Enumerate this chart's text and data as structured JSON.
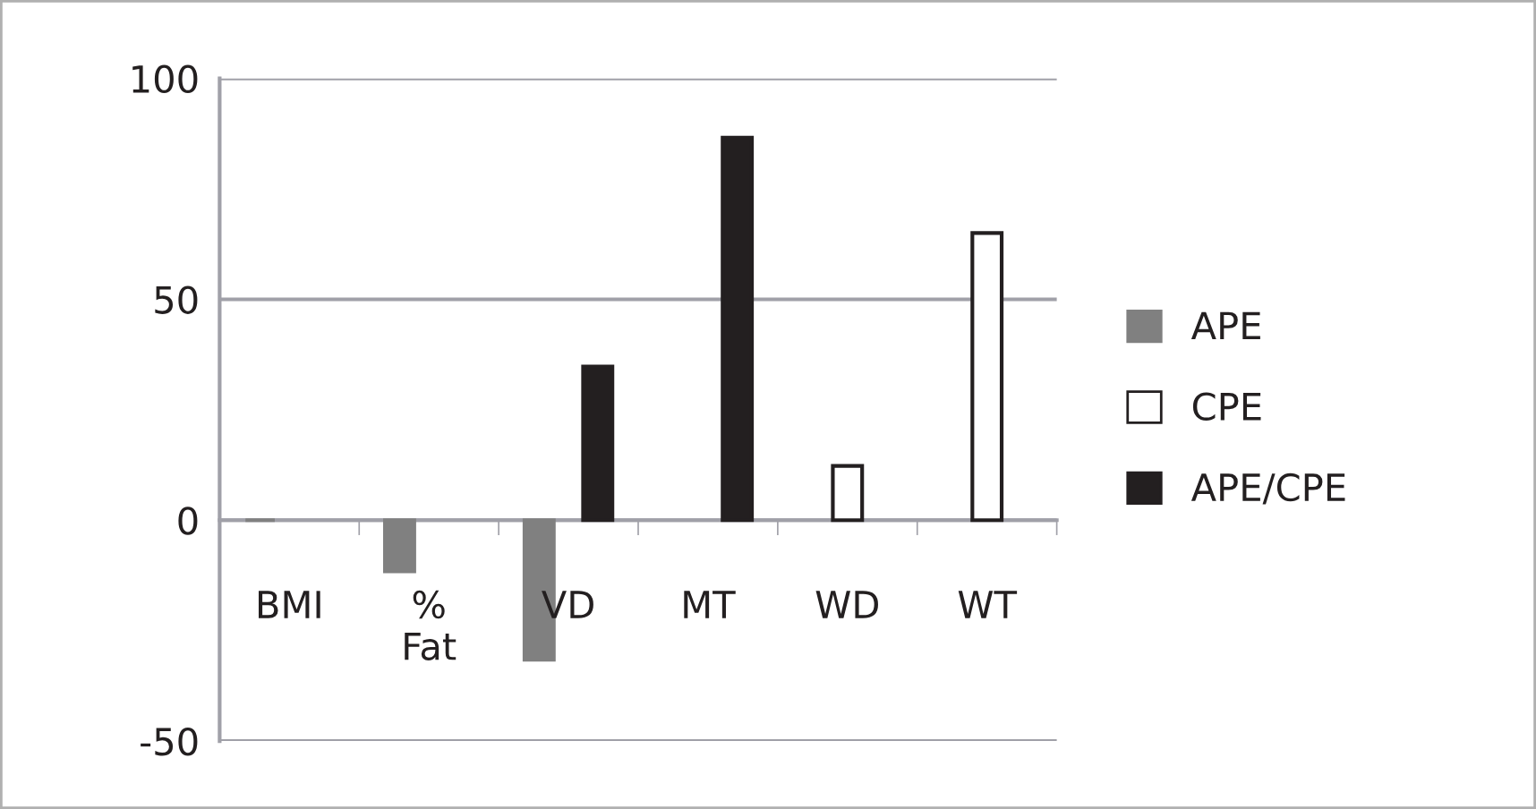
{
  "chart_data": {
    "type": "bar",
    "categories": [
      "BMI",
      "% Fat",
      "VD",
      "MT",
      "WD",
      "WT"
    ],
    "series": [
      {
        "name": "APE",
        "color": "#808080",
        "values": [
          0,
          -11.6,
          -31.6,
          null,
          null,
          null
        ]
      },
      {
        "name": "CPE",
        "color": "#ffffff",
        "values": [
          null,
          null,
          null,
          null,
          12.3,
          65
        ]
      },
      {
        "name": "APE/CPE",
        "color": "#231f20",
        "values": [
          null,
          null,
          34.8,
          86.6,
          null,
          null
        ]
      }
    ],
    "ylim": [
      -50,
      100
    ],
    "yticks": [
      -50,
      0,
      50,
      100
    ],
    "grid": "y",
    "legend": "right"
  }
}
